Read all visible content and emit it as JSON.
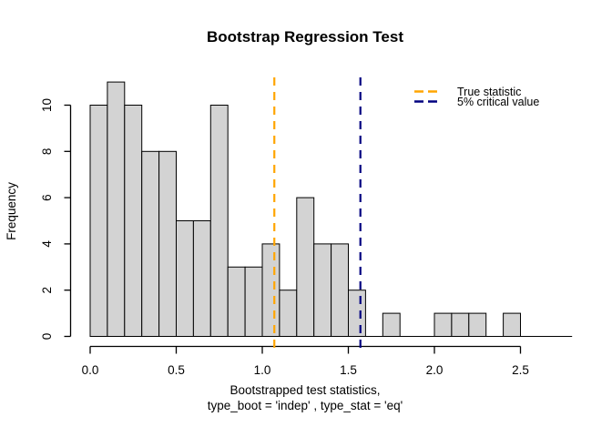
{
  "title": "Bootstrap Regression Test",
  "y_axis": {
    "label": "Frequency"
  },
  "x_axis": {
    "label_line1": "Bootstrapped test statistics,",
    "label_line2": "type_boot = 'indep' , type_stat = 'eq'"
  },
  "legend": {
    "items": [
      {
        "label": "True statistic",
        "color": "#ffa500",
        "style": "dashed"
      },
      {
        "label": "5% critical value",
        "color": "#000080",
        "style": "dashed"
      }
    ]
  },
  "chart_data": {
    "type": "bar",
    "subtype": "histogram",
    "title": "Bootstrap Regression Test",
    "xlabel": "Bootstrapped test statistics, type_boot = 'indep' , type_stat = 'eq'",
    "ylabel": "Frequency",
    "bin_start": 0.0,
    "bin_width": 0.1,
    "counts": [
      10,
      11,
      10,
      8,
      8,
      5,
      5,
      10,
      3,
      3,
      4,
      2,
      6,
      4,
      4,
      2,
      0,
      1,
      0,
      0,
      1,
      1,
      1,
      0,
      1
    ],
    "total_count": 100,
    "xlim": [
      0.0,
      2.5
    ],
    "ylim": [
      0,
      11
    ],
    "x_ticks": [
      0,
      0.5,
      1.0,
      1.5,
      2.0,
      2.5
    ],
    "x_tick_labels": [
      "0.0",
      "0.5",
      "1.0",
      "1.5",
      "2.0",
      "2.5"
    ],
    "y_ticks": [
      0,
      2,
      4,
      6,
      8,
      10
    ],
    "y_tick_labels": [
      "0",
      "2",
      "4",
      "6",
      "8",
      "10"
    ],
    "grid": false,
    "legend_position": "top-right",
    "baseline_extends_to": 2.8,
    "bar_fill": "#d3d3d3",
    "bar_stroke": "#000000",
    "vlines": [
      {
        "x": 1.07,
        "color": "#ffa500",
        "style": "dashed",
        "label": "True statistic"
      },
      {
        "x": 1.57,
        "color": "#000080",
        "style": "dashed",
        "label": "5% critical value"
      }
    ]
  }
}
